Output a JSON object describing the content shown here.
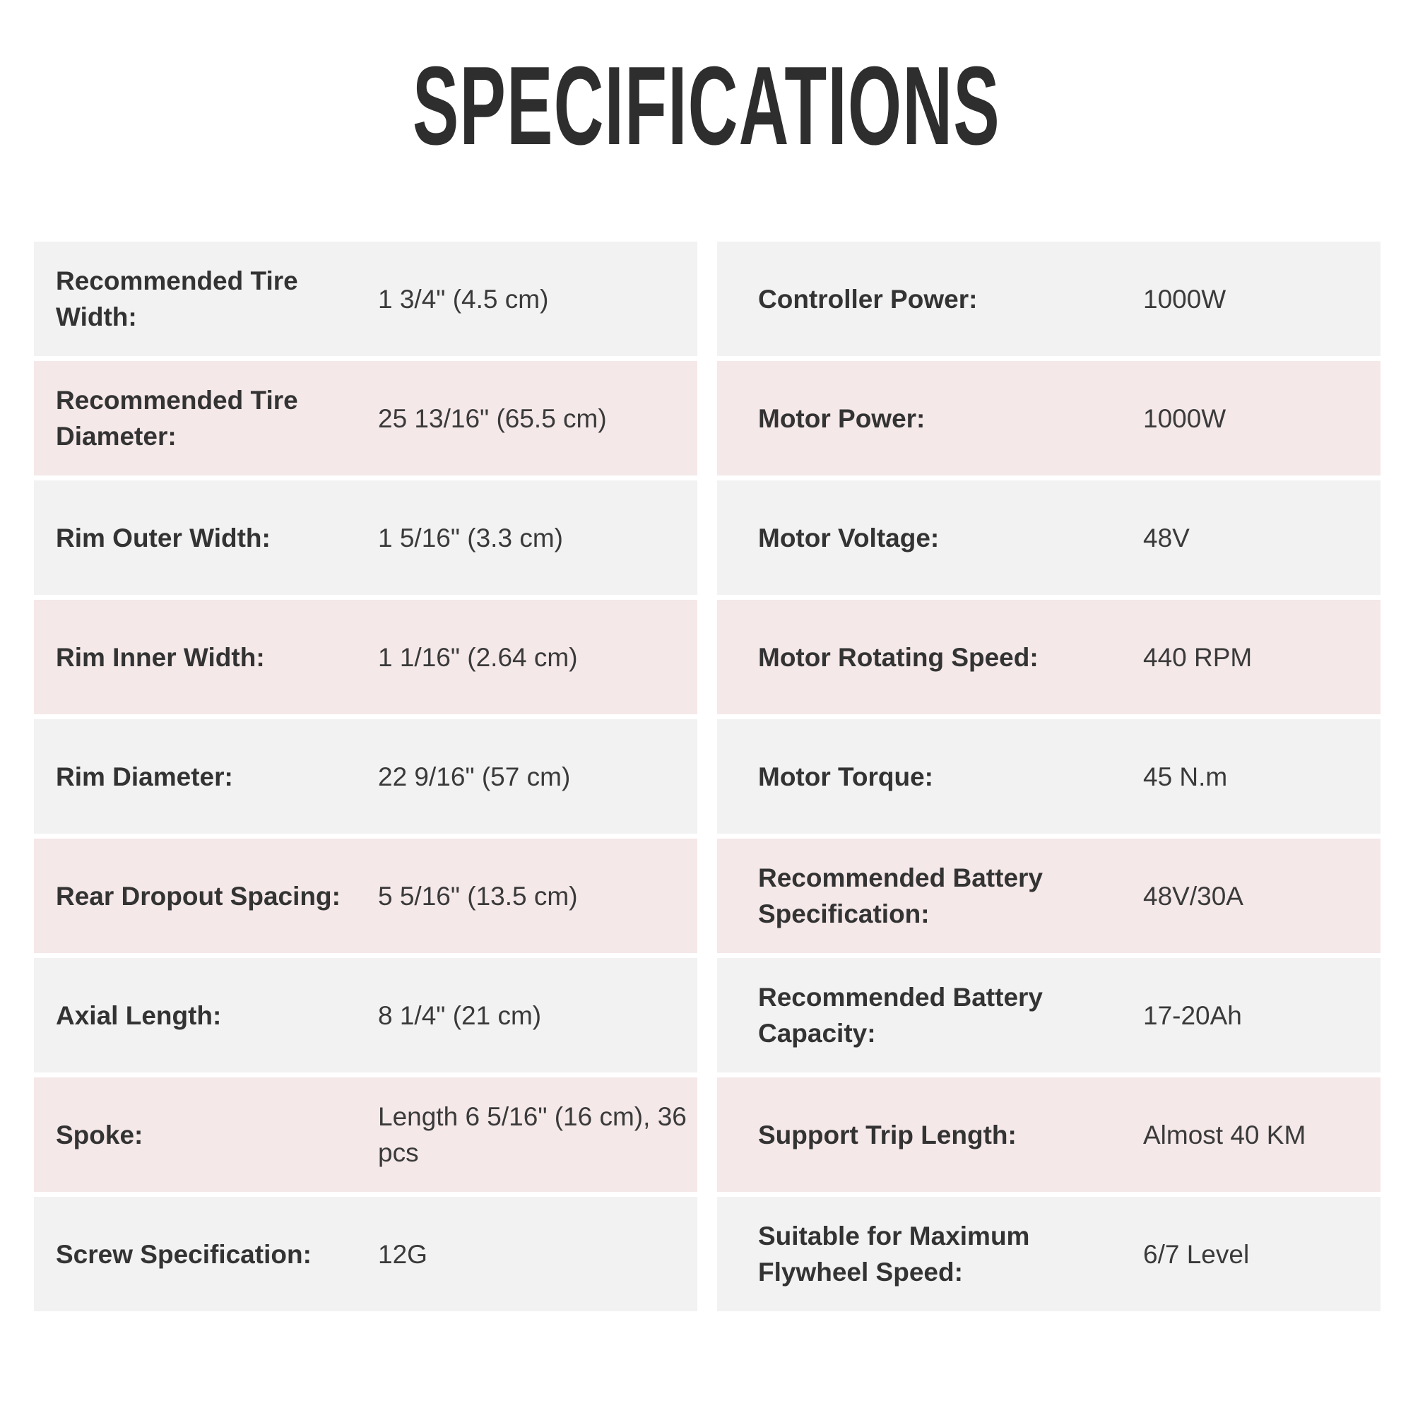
{
  "title": "SPECIFICATIONS",
  "colors": {
    "row_gray": "#f2f2f2",
    "row_pink": "#f5e8e9",
    "text": "#333333"
  },
  "left": [
    {
      "label": "Recommended Tire Width:",
      "value": "1 3/4\" (4.5 cm)"
    },
    {
      "label": "Recommended Tire Diameter:",
      "value": "25 13/16\" (65.5 cm)"
    },
    {
      "label": "Rim Outer Width:",
      "value": "1 5/16\" (3.3 cm)"
    },
    {
      "label": "Rim Inner Width:",
      "value": "1 1/16\" (2.64 cm)"
    },
    {
      "label": "Rim Diameter:",
      "value": "22 9/16\" (57 cm)"
    },
    {
      "label": "Rear Dropout Spacing:",
      "value": "5 5/16\" (13.5 cm)"
    },
    {
      "label": "Axial Length:",
      "value": "8 1/4\" (21 cm)"
    },
    {
      "label": "Spoke:",
      "value": "Length 6 5/16\" (16 cm), 36 pcs"
    },
    {
      "label": "Screw Specification:",
      "value": "12G"
    }
  ],
  "right": [
    {
      "label": "Controller Power:",
      "value": "1000W"
    },
    {
      "label": "Motor Power:",
      "value": "1000W"
    },
    {
      "label": "Motor Voltage:",
      "value": "48V"
    },
    {
      "label": "Motor Rotating Speed:",
      "value": "440 RPM"
    },
    {
      "label": "Motor Torque:",
      "value": "45 N.m"
    },
    {
      "label": "Recommended Battery Specification:",
      "value": "48V/30A"
    },
    {
      "label": "Recommended Battery Capacity:",
      "value": "17-20Ah"
    },
    {
      "label": "Support Trip Length:",
      "value": "Almost 40 KM"
    },
    {
      "label": "Suitable for Maximum Flywheel Speed:",
      "value": "6/7 Level"
    }
  ]
}
